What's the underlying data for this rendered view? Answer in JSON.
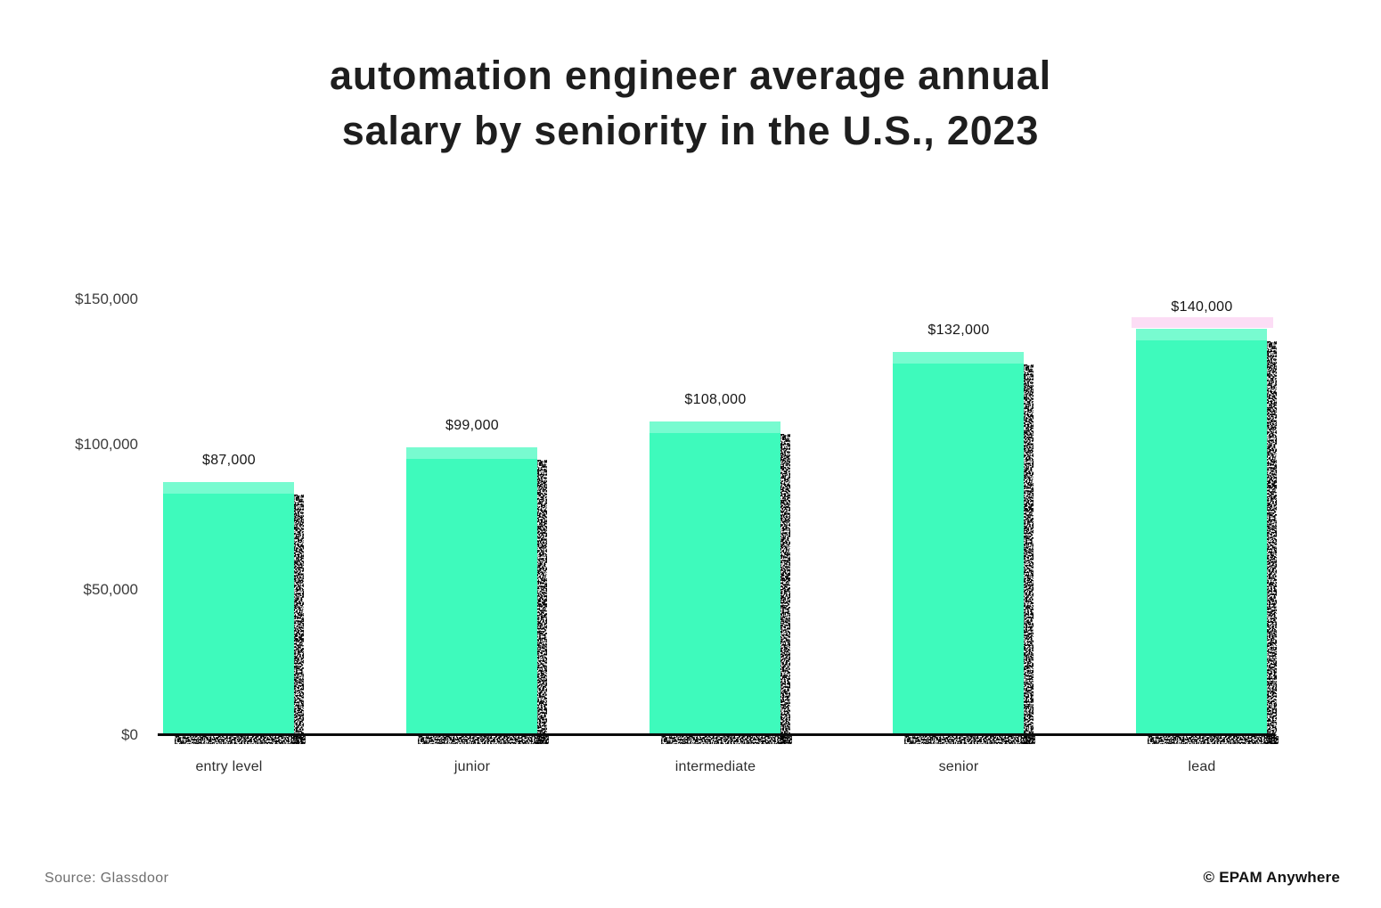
{
  "title": {
    "line1": "automation engineer average annual",
    "line2": "salary by seniority in the U.S., 2023"
  },
  "chart_data": {
    "type": "bar",
    "title": "automation engineer average annual salary by seniority in the U.S., 2023",
    "categories": [
      "entry level",
      "junior",
      "intermediate",
      "senior",
      "lead"
    ],
    "values": [
      87000,
      99000,
      108000,
      132000,
      140000
    ],
    "value_labels": [
      "$87,000",
      "$99,000",
      "$108,000",
      "$132,000",
      "$140,000"
    ],
    "xlabel": "",
    "ylabel": "",
    "ylim": [
      0,
      150000
    ],
    "yticks": [
      {
        "value": 0,
        "label": "$0"
      },
      {
        "value": 50000,
        "label": "$50,000"
      },
      {
        "value": 100000,
        "label": "$100,000"
      },
      {
        "value": 150000,
        "label": "$150,000"
      }
    ],
    "grid": false,
    "legend": false,
    "bar_color": "#3efabc",
    "shadow_style": "stippled-black-offset-right"
  },
  "footer": {
    "source": "Source: Glassdoor",
    "brand": "© EPAM Anywhere"
  }
}
